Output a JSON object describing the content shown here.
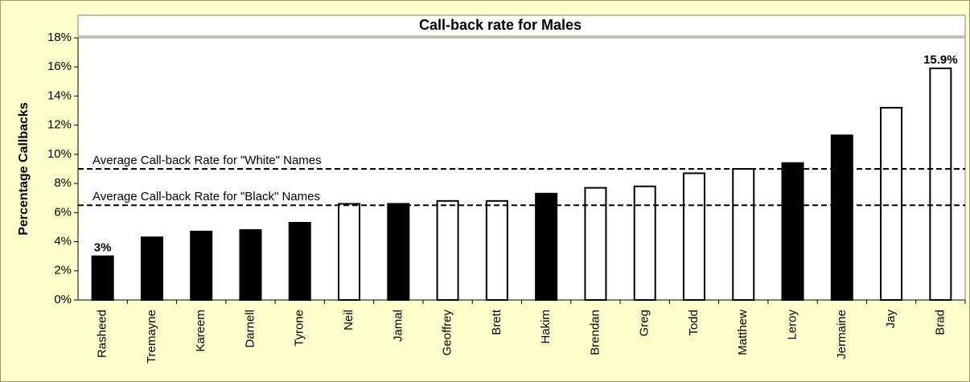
{
  "chart_data": {
    "type": "bar",
    "title": "Call-back rate for Males",
    "y_label": "Percentage Callbacks",
    "categories": [
      "Rasheed",
      "Tremayne",
      "Kareem",
      "Darnell",
      "Tyrone",
      "Neil",
      "Jamal",
      "Geoffrey",
      "Brett",
      "Hakim",
      "Brendan",
      "Greg",
      "Todd",
      "Matthew",
      "Leroy",
      "Jermaine",
      "Jay",
      "Brad"
    ],
    "values": [
      3.0,
      4.3,
      4.7,
      4.8,
      5.3,
      6.6,
      6.6,
      6.8,
      6.8,
      7.3,
      7.7,
      7.8,
      8.7,
      9.0,
      9.4,
      11.3,
      13.2,
      15.9
    ],
    "value_labels": [
      "3%",
      null,
      null,
      null,
      null,
      null,
      null,
      null,
      null,
      null,
      null,
      null,
      null,
      null,
      null,
      null,
      null,
      "15.9%"
    ],
    "colors": [
      "#000000",
      "#000000",
      "#000000",
      "#000000",
      "#000000",
      "#ffffff",
      "#000000",
      "#ffffff",
      "#ffffff",
      "#000000",
      "#ffffff",
      "#ffffff",
      "#ffffff",
      "#ffffff",
      "#000000",
      "#000000",
      "#ffffff",
      "#ffffff"
    ],
    "ylim": [
      0,
      18
    ],
    "yticks": [
      {
        "value": 0,
        "label": "0%"
      },
      {
        "value": 2,
        "label": "2%"
      },
      {
        "value": 4,
        "label": "4%"
      },
      {
        "value": 6,
        "label": "6%"
      },
      {
        "value": 8,
        "label": "8%"
      },
      {
        "value": 10,
        "label": "10%"
      },
      {
        "value": 12,
        "label": "12%"
      },
      {
        "value": 14,
        "label": "14%"
      },
      {
        "value": 16,
        "label": "16%"
      },
      {
        "value": 18,
        "label": "18%"
      }
    ],
    "reference_lines": [
      {
        "value": 9.0,
        "label": "Average Call-back Rate for \"White\" Names"
      },
      {
        "value": 6.5,
        "label": "Average Call-back Rate for \"Black\" Names"
      }
    ]
  }
}
